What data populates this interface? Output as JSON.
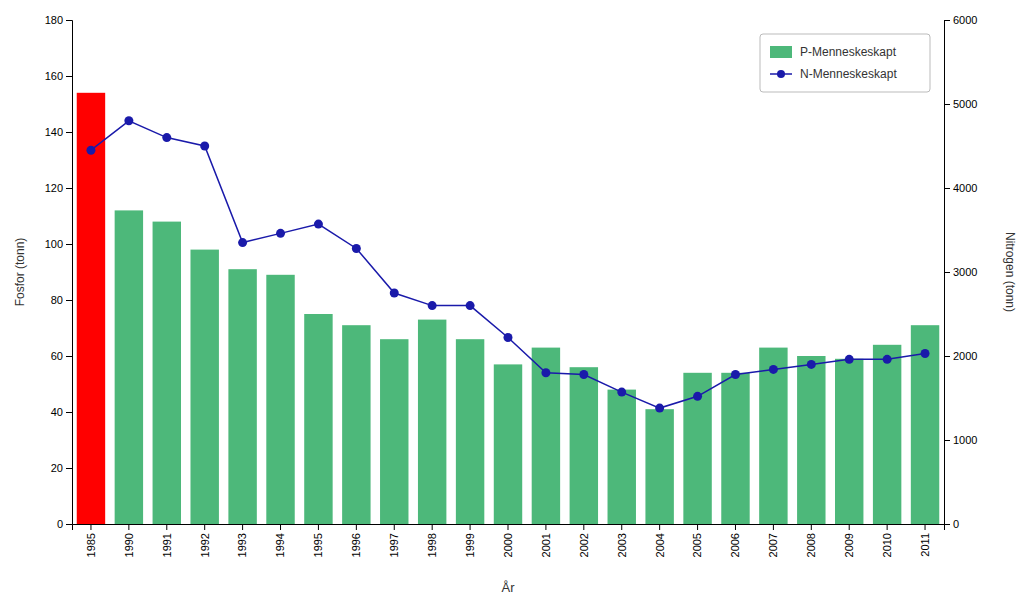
{
  "chart_data": {
    "type": "bar",
    "xlabel": "År",
    "ylabel": "Fosfor (tonn)",
    "y2label": "Nitrogen (tonn)",
    "categories": [
      "1985",
      "1990",
      "1991",
      "1992",
      "1993",
      "1994",
      "1995",
      "1996",
      "1997",
      "1998",
      "1999",
      "2000",
      "2001",
      "2002",
      "2003",
      "2004",
      "2005",
      "2006",
      "2007",
      "2008",
      "2009",
      "2010",
      "2011"
    ],
    "series": [
      {
        "name": "P-Menneskeskapt",
        "type": "bar",
        "color": "#4db87a",
        "colors": [
          "#ff0000",
          "#4db87a",
          "#4db87a",
          "#4db87a",
          "#4db87a",
          "#4db87a",
          "#4db87a",
          "#4db87a",
          "#4db87a",
          "#4db87a",
          "#4db87a",
          "#4db87a",
          "#4db87a",
          "#4db87a",
          "#4db87a",
          "#4db87a",
          "#4db87a",
          "#4db87a",
          "#4db87a",
          "#4db87a",
          "#4db87a",
          "#4db87a",
          "#4db87a"
        ],
        "values": [
          154,
          112,
          108,
          98,
          91,
          89,
          75,
          71,
          66,
          73,
          66,
          57,
          63,
          56,
          48,
          41,
          54,
          54,
          63,
          60,
          59,
          64,
          71
        ]
      },
      {
        "name": "N-Menneskeskapt",
        "type": "line",
        "axis": "y2",
        "color": "#1a1aaa",
        "marker": "circle",
        "values": [
          4450,
          4800,
          4600,
          4500,
          3350,
          3460,
          3570,
          3280,
          2750,
          2600,
          2600,
          2220,
          1800,
          1780,
          1570,
          1380,
          1520,
          1780,
          1840,
          1900,
          1960,
          1960,
          2030
        ]
      }
    ],
    "ylim": [
      0,
      180
    ],
    "yticks": [
      0,
      20,
      40,
      60,
      80,
      100,
      120,
      140,
      160,
      180
    ],
    "y2lim": [
      0,
      6000
    ],
    "y2ticks": [
      0,
      1000,
      2000,
      3000,
      4000,
      5000,
      6000
    ],
    "grid": false,
    "legend": "upper right"
  }
}
